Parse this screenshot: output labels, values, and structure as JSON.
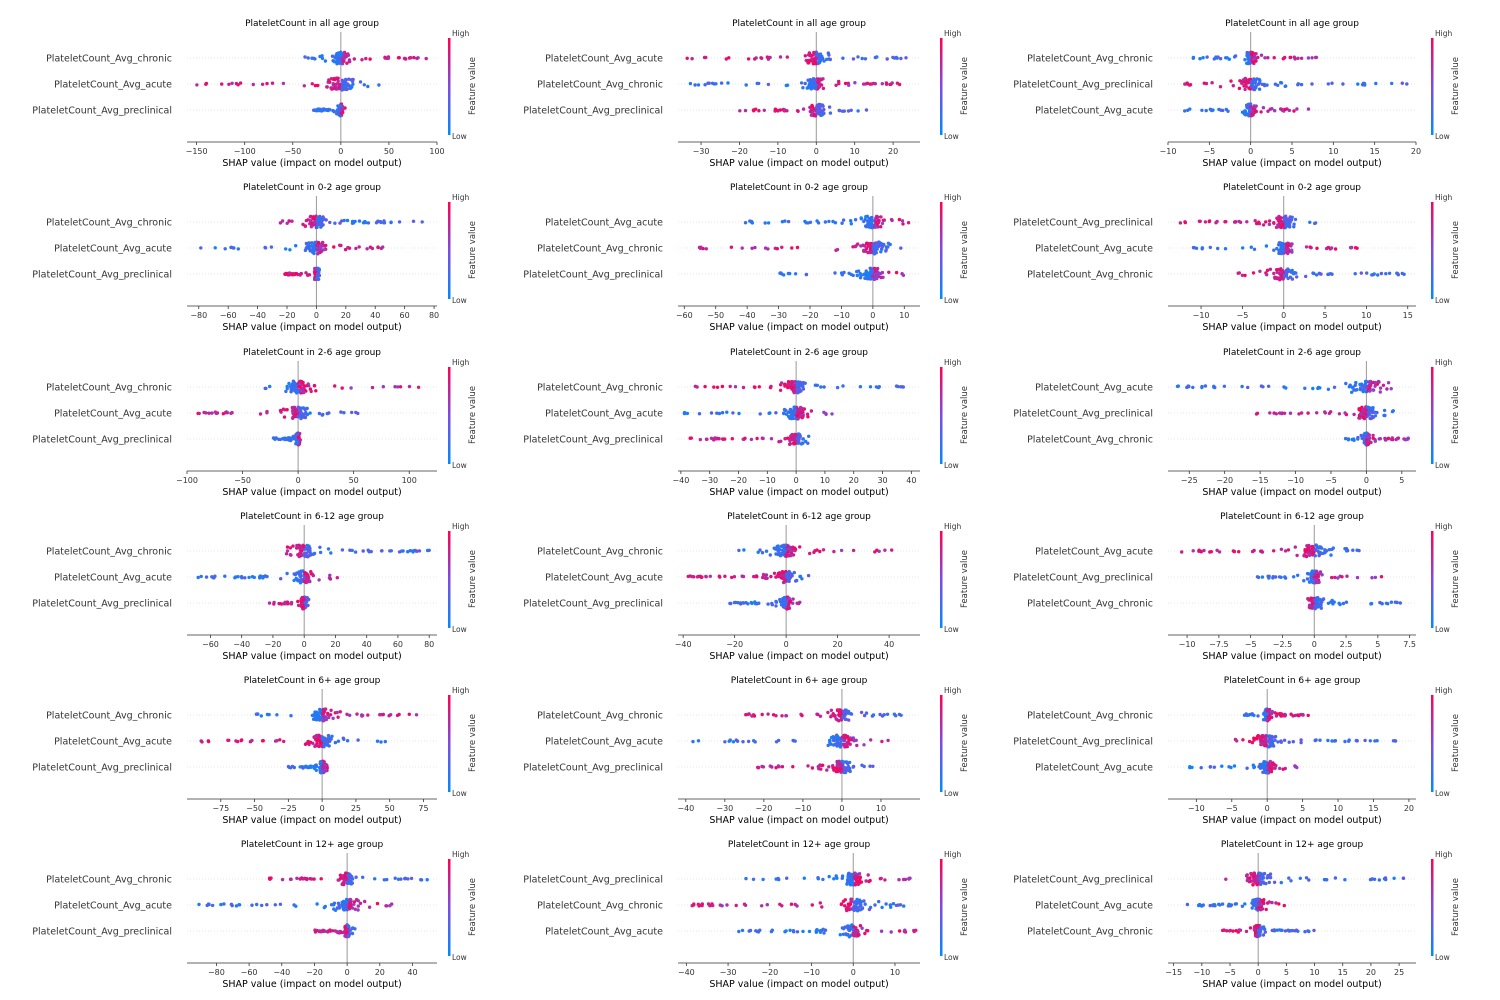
{
  "xlabel": "SHAP value (impact on model output)",
  "colorbar": {
    "title": "Feature value",
    "high": "High",
    "low": "Low",
    "color_low": "#008bfb",
    "color_mid": "#7c4ce0",
    "color_high": "#ff0052"
  },
  "chart_data": [
    {
      "type": "scatter",
      "title": "PlateletCount in all age group",
      "features": [
        "PlateletCount_Avg_chronic",
        "PlateletCount_Avg_acute",
        "PlateletCount_Avg_preclinical"
      ],
      "xlim": [
        -160,
        100
      ],
      "xticks": [
        -150,
        -100,
        -50,
        0,
        50,
        100
      ],
      "ranges": [
        [
          -45,
          90
        ],
        [
          -152,
          40
        ],
        [
          -30,
          5
        ]
      ]
    },
    {
      "type": "scatter",
      "title": "PlateletCount in all age group",
      "features": [
        "PlateletCount_Avg_acute",
        "PlateletCount_Avg_chronic",
        "PlateletCount_Avg_preclinical"
      ],
      "xlim": [
        -36,
        27
      ],
      "xticks": [
        -30,
        -20,
        -10,
        0,
        10,
        20
      ],
      "ranges": [
        [
          -35,
          24
        ],
        [
          -33,
          22
        ],
        [
          -20,
          14
        ]
      ]
    },
    {
      "type": "scatter",
      "title": "PlateletCount in all age group",
      "features": [
        "PlateletCount_Avg_chronic",
        "PlateletCount_Avg_preclinical",
        "PlateletCount_Avg_acute"
      ],
      "xlim": [
        -10,
        20
      ],
      "xticks": [
        -10,
        -5,
        0,
        5,
        10,
        15,
        20
      ],
      "ranges": [
        [
          -7,
          8
        ],
        [
          -9,
          19
        ],
        [
          -8,
          7
        ]
      ]
    },
    {
      "type": "scatter",
      "title": "PlateletCount in 0-2 age group",
      "features": [
        "PlateletCount_Avg_chronic",
        "PlateletCount_Avg_acute",
        "PlateletCount_Avg_preclinical"
      ],
      "xlim": [
        -88,
        82
      ],
      "xticks": [
        -80,
        -60,
        -40,
        -20,
        0,
        20,
        40,
        60,
        80
      ],
      "ranges": [
        [
          -25,
          73
        ],
        [
          -82,
          50
        ],
        [
          -22,
          2
        ]
      ]
    },
    {
      "type": "scatter",
      "title": "PlateletCount in 0-2 age group",
      "features": [
        "PlateletCount_Avg_acute",
        "PlateletCount_Avg_chronic",
        "PlateletCount_Avg_preclinical"
      ],
      "xlim": [
        -62,
        15
      ],
      "xticks": [
        -60,
        -50,
        -40,
        -30,
        -20,
        -10,
        0,
        10
      ],
      "ranges": [
        [
          -42,
          13
        ],
        [
          -56,
          11
        ],
        [
          -30,
          11
        ]
      ]
    },
    {
      "type": "scatter",
      "title": "PlateletCount in 0-2 age group",
      "features": [
        "PlateletCount_Avg_preclinical",
        "PlateletCount_Avg_acute",
        "PlateletCount_Avg_chronic"
      ],
      "xlim": [
        -14,
        16
      ],
      "xticks": [
        -10,
        -5,
        0,
        5,
        10,
        15
      ],
      "ranges": [
        [
          -13,
          4
        ],
        [
          -11,
          9
        ],
        [
          -6,
          15
        ]
      ]
    },
    {
      "type": "scatter",
      "title": "PlateletCount in 2-6 age group",
      "features": [
        "PlateletCount_Avg_chronic",
        "PlateletCount_Avg_acute",
        "PlateletCount_Avg_preclinical"
      ],
      "xlim": [
        -100,
        125
      ],
      "xticks": [
        -100,
        -50,
        0,
        50,
        100
      ],
      "ranges": [
        [
          -32,
          122
        ],
        [
          -92,
          57
        ],
        [
          -25,
          3
        ]
      ]
    },
    {
      "type": "scatter",
      "title": "PlateletCount in 2-6 age group",
      "features": [
        "PlateletCount_Avg_chronic",
        "PlateletCount_Avg_acute",
        "PlateletCount_Avg_preclinical"
      ],
      "xlim": [
        -41,
        43
      ],
      "xticks": [
        -40,
        -30,
        -20,
        -10,
        0,
        10,
        20,
        30,
        40
      ],
      "ranges": [
        [
          -35,
          40
        ],
        [
          -39,
          13
        ],
        [
          -37,
          6
        ]
      ]
    },
    {
      "type": "scatter",
      "title": "PlateletCount in 2-6 age group",
      "features": [
        "PlateletCount_Avg_acute",
        "PlateletCount_Avg_preclinical",
        "PlateletCount_Avg_chronic"
      ],
      "xlim": [
        -28,
        7
      ],
      "xticks": [
        -25,
        -20,
        -15,
        -10,
        -5,
        0,
        5
      ],
      "ranges": [
        [
          -27,
          5
        ],
        [
          -16,
          4
        ],
        [
          -3,
          6
        ]
      ]
    },
    {
      "type": "scatter",
      "title": "PlateletCount in 6-12 age group",
      "features": [
        "PlateletCount_Avg_chronic",
        "PlateletCount_Avg_acute",
        "PlateletCount_Avg_preclinical"
      ],
      "xlim": [
        -75,
        85
      ],
      "xticks": [
        -60,
        -40,
        -20,
        0,
        20,
        40,
        60,
        80
      ],
      "ranges": [
        [
          -12,
          80
        ],
        [
          -69,
          22
        ],
        [
          -24,
          3
        ]
      ]
    },
    {
      "type": "scatter",
      "title": "PlateletCount in 6-12 age group",
      "features": [
        "PlateletCount_Avg_chronic",
        "PlateletCount_Avg_acute",
        "PlateletCount_Avg_preclinical"
      ],
      "xlim": [
        -42,
        52
      ],
      "xticks": [
        -40,
        -20,
        0,
        20,
        40
      ],
      "ranges": [
        [
          -20,
          48
        ],
        [
          -40,
          9
        ],
        [
          -22,
          7
        ]
      ]
    },
    {
      "type": "scatter",
      "title": "PlateletCount in 6-12 age group",
      "features": [
        "PlateletCount_Avg_acute",
        "PlateletCount_Avg_preclinical",
        "PlateletCount_Avg_chronic"
      ],
      "xlim": [
        -11.5,
        8
      ],
      "xticks": [
        -10.0,
        -7.5,
        -5.0,
        -2.5,
        0.0,
        2.5,
        5.0,
        7.5
      ],
      "ranges": [
        [
          -11,
          4
        ],
        [
          -4.5,
          6
        ],
        [
          -0.5,
          7
        ]
      ]
    },
    {
      "type": "scatter",
      "title": "PlateletCount in 6+ age group",
      "features": [
        "PlateletCount_Avg_chronic",
        "PlateletCount_Avg_acute",
        "PlateletCount_Avg_preclinical"
      ],
      "xlim": [
        -100,
        85
      ],
      "xticks": [
        -75,
        -50,
        -25,
        0,
        25,
        50,
        75
      ],
      "ranges": [
        [
          -50,
          75
        ],
        [
          -93,
          48
        ],
        [
          -25,
          4
        ]
      ]
    },
    {
      "type": "scatter",
      "title": "PlateletCount in 6+ age group",
      "features": [
        "PlateletCount_Avg_chronic",
        "PlateletCount_Avg_acute",
        "PlateletCount_Avg_preclinical"
      ],
      "xlim": [
        -42,
        20
      ],
      "xticks": [
        -40,
        -30,
        -20,
        -10,
        0,
        10
      ],
      "ranges": [
        [
          -25,
          16
        ],
        [
          -39,
          15
        ],
        [
          -22,
          9
        ]
      ]
    },
    {
      "type": "scatter",
      "title": "PlateletCount in 6+ age group",
      "features": [
        "PlateletCount_Avg_chronic",
        "PlateletCount_Avg_preclinical",
        "PlateletCount_Avg_acute"
      ],
      "xlim": [
        -14,
        21
      ],
      "xticks": [
        -10,
        -5,
        0,
        5,
        10,
        15,
        20
      ],
      "ranges": [
        [
          -4,
          6
        ],
        [
          -4.5,
          19
        ],
        [
          -11,
          5
        ]
      ]
    },
    {
      "type": "scatter",
      "title": "PlateletCount in 12+ age group",
      "features": [
        "PlateletCount_Avg_chronic",
        "PlateletCount_Avg_acute",
        "PlateletCount_Avg_preclinical"
      ],
      "xlim": [
        -98,
        55
      ],
      "xticks": [
        -80,
        -60,
        -40,
        -20,
        0,
        20,
        40
      ],
      "ranges": [
        [
          -48,
          50
        ],
        [
          -92,
          32
        ],
        [
          -20,
          5
        ]
      ]
    },
    {
      "type": "scatter",
      "title": "PlateletCount in 12+ age group",
      "features": [
        "PlateletCount_Avg_preclinical",
        "PlateletCount_Avg_chronic",
        "PlateletCount_Avg_acute"
      ],
      "xlim": [
        -42,
        16
      ],
      "xticks": [
        -40,
        -30,
        -20,
        -10,
        0,
        10
      ],
      "ranges": [
        [
          -26,
          14
        ],
        [
          -39,
          15
        ],
        [
          -28,
          15
        ]
      ]
    },
    {
      "type": "scatter",
      "title": "PlateletCount in 12+ age group",
      "features": [
        "PlateletCount_Avg_preclinical",
        "PlateletCount_Avg_acute",
        "PlateletCount_Avg_chronic"
      ],
      "xlim": [
        -16,
        28
      ],
      "xticks": [
        -15,
        -10,
        -5,
        0,
        5,
        10,
        15,
        20,
        25
      ],
      "ranges": [
        [
          -8,
          26
        ],
        [
          -13,
          5
        ],
        [
          -7,
          10
        ]
      ]
    }
  ]
}
